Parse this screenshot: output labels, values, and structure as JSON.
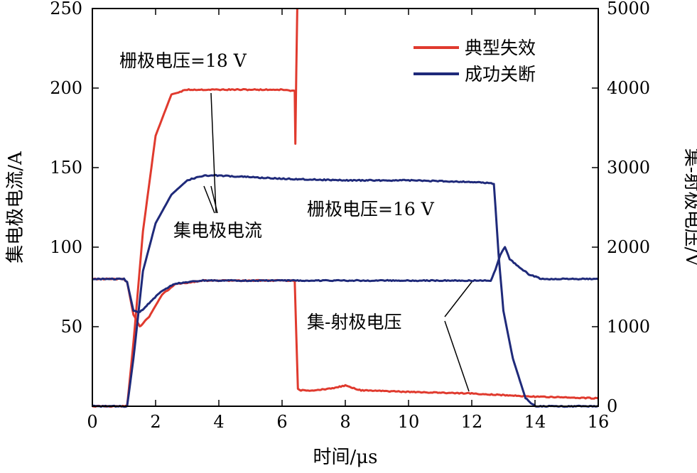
{
  "chart_data": {
    "type": "line",
    "xlabel": "时间/μs",
    "ylabel_left": "集电极电流/A",
    "ylabel_right": "集-射极电压/V",
    "xlim": [
      0,
      16
    ],
    "ylim_left": [
      0,
      250
    ],
    "ylim_right": [
      0,
      5000
    ],
    "x_ticks": [
      "0",
      "2",
      "4",
      "6",
      "8",
      "10",
      "12",
      "14",
      "16"
    ],
    "y_left_ticks": [
      "50",
      "100",
      "150",
      "200",
      "250"
    ],
    "y_right_ticks": [
      "0",
      "1000",
      "2000",
      "3000",
      "4000",
      "5000"
    ],
    "grid": false,
    "legend_position": "top-right",
    "series": [
      {
        "name": "典型失效",
        "color": "#e03a2e",
        "quantity": "集电极电流",
        "axis": "left",
        "x": [
          0,
          1.1,
          1.3,
          1.6,
          2.0,
          2.5,
          3.0,
          4.0,
          5.0,
          6.0,
          6.4,
          6.42,
          6.45,
          6.48
        ],
        "values": [
          0,
          0,
          40,
          110,
          170,
          196,
          199,
          199,
          199,
          199,
          198,
          165,
          210,
          250
        ]
      },
      {
        "name": "典型失效",
        "color": "#e03a2e",
        "quantity": "集-射极电压",
        "axis": "right",
        "x": [
          0,
          1.0,
          1.1,
          1.3,
          1.5,
          1.8,
          2.2,
          2.6,
          3.5,
          5.0,
          6.4,
          6.5,
          6.6,
          7.0,
          7.5,
          8.0,
          8.5,
          10,
          12,
          14,
          16
        ],
        "values": [
          1600,
          1600,
          1560,
          1150,
          1000,
          1130,
          1400,
          1530,
          1580,
          1580,
          1580,
          220,
          200,
          200,
          220,
          260,
          200,
          180,
          160,
          120,
          100
        ]
      },
      {
        "name": "成功关断",
        "color": "#1f2a7a",
        "quantity": "集电极电流",
        "axis": "left",
        "x": [
          0,
          1.1,
          1.3,
          1.6,
          2.0,
          2.5,
          3.0,
          3.5,
          4.0,
          5,
          6,
          8,
          10,
          12,
          12.7,
          12.85,
          13.0,
          13.3,
          13.7,
          14.0,
          16
        ],
        "values": [
          0,
          0,
          30,
          85,
          115,
          133,
          142,
          145,
          145,
          144,
          143,
          142,
          142,
          141,
          140,
          95,
          60,
          30,
          5,
          0,
          0
        ]
      },
      {
        "name": "成功关断",
        "color": "#1f2a7a",
        "quantity": "集-射极电压",
        "axis": "right",
        "x": [
          0,
          1.0,
          1.1,
          1.3,
          1.5,
          1.8,
          2.2,
          2.6,
          3.5,
          6,
          8,
          10,
          12,
          12.6,
          12.75,
          12.9,
          13.05,
          13.2,
          13.5,
          13.8,
          14.2,
          16
        ],
        "values": [
          1600,
          1600,
          1560,
          1200,
          1180,
          1300,
          1450,
          1540,
          1580,
          1580,
          1580,
          1580,
          1580,
          1580,
          1720,
          1900,
          2000,
          1850,
          1750,
          1660,
          1600,
          1600
        ]
      }
    ],
    "annotations": [
      "栅极电压=18 V",
      "栅极电压=16 V",
      "集电极电流",
      "集-射极电压"
    ]
  }
}
